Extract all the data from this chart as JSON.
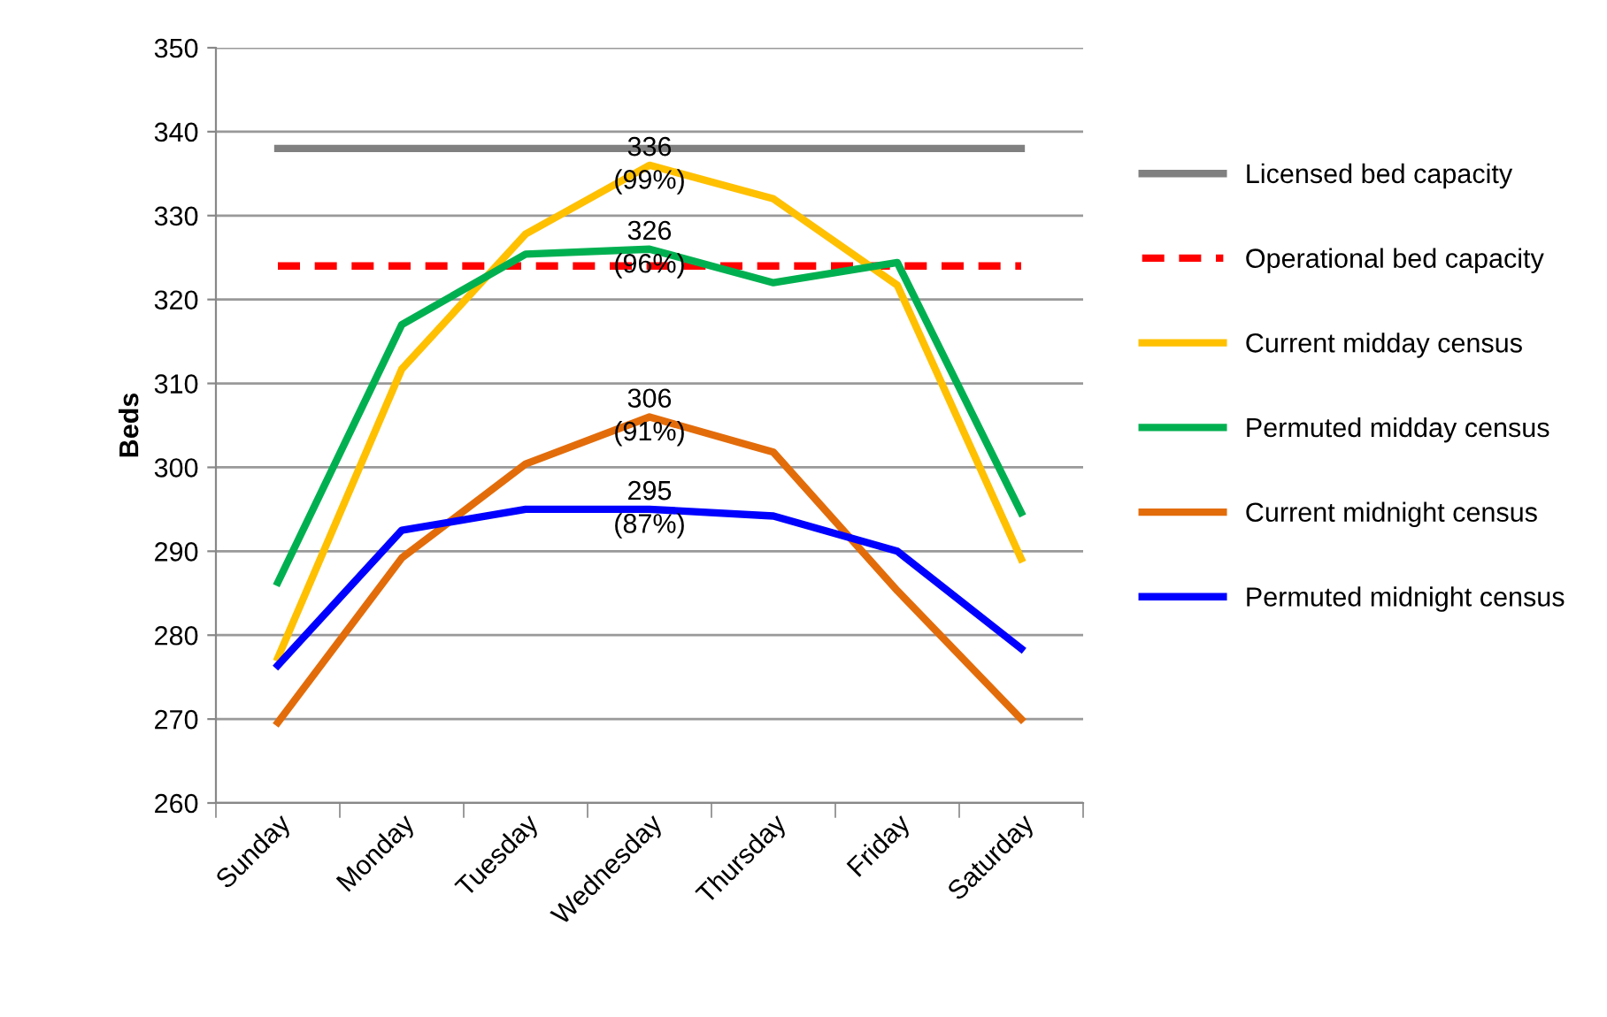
{
  "chart_data": {
    "type": "line",
    "ylabel": "Beds",
    "categories": [
      "Sunday",
      "Monday",
      "Tuesday",
      "Wednesday",
      "Thursday",
      "Friday",
      "Saturday"
    ],
    "series": [
      {
        "name": "Licensed bed capacity",
        "color": "#808080",
        "values": [
          338,
          338,
          338,
          338,
          338,
          338,
          338
        ]
      },
      {
        "name": "Operational bed capacity",
        "color": "#ff0000",
        "line_style": "dashed",
        "values": [
          324,
          324,
          324,
          324,
          324,
          324,
          324
        ]
      },
      {
        "name": "Current midday census",
        "color": "#ffc000",
        "values": [
          277.3,
          311.7,
          327.8,
          336,
          332.0,
          321.7,
          289.1
        ]
      },
      {
        "name": "Permuted midday census",
        "color": "#00b050",
        "values": [
          286.3,
          317.0,
          325.4,
          326,
          322.0,
          324.4,
          294.6
        ]
      },
      {
        "name": "Current midnight census",
        "color": "#e36c0a",
        "values": [
          269.6,
          289.2,
          300.4,
          306,
          301.8,
          285.3,
          270
        ]
      },
      {
        "name": "Permuted midnight census",
        "color": "#0000ff",
        "values": [
          276.4,
          292.5,
          295.0,
          295,
          294.2,
          290,
          278.4
        ]
      }
    ],
    "annotations": [
      {
        "text": "336\n(99%)",
        "x": "Wednesday",
        "y": 336
      },
      {
        "text": "326\n(96%)",
        "x": "Wednesday",
        "y": 326
      },
      {
        "text": "306\n(91%)",
        "x": "Wednesday",
        "y": 306
      },
      {
        "text": "295\n(87%)",
        "x": "Wednesday",
        "y": 295
      }
    ],
    "ylim": [
      260,
      350
    ],
    "yticks": [
      260,
      270,
      280,
      290,
      300,
      310,
      320,
      330,
      340,
      350
    ],
    "grid": "y",
    "legend": "right",
    "marker": "none",
    "line_style": "solid"
  }
}
